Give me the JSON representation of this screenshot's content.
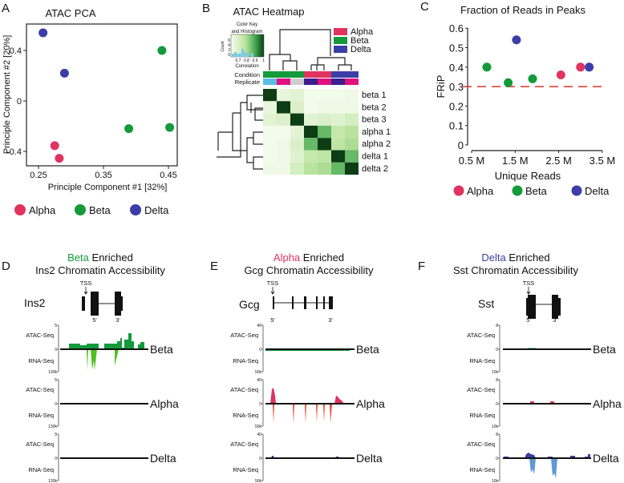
{
  "colors": {
    "alpha": "#e0335f",
    "beta": "#139a3a",
    "delta": "#3b3ea6",
    "threshold": "#d9362b",
    "rna_delta": "#5c9ad6",
    "rna_alpha": "#e8432a",
    "rna_beta": "#4fc11f"
  },
  "panels": {
    "A": "A",
    "B": "B",
    "C": "C",
    "D": "D",
    "E": "E",
    "F": "F"
  },
  "legend": [
    {
      "name": "Alpha",
      "color": "#e0335f"
    },
    {
      "name": "Beta",
      "color": "#139a3a"
    },
    {
      "name": "Delta",
      "color": "#3b3ea6"
    }
  ],
  "chart_data": [
    {
      "id": "pca",
      "type": "scatter",
      "title": "ATAC PCA",
      "xlabel": "Principle Component #1 [32%]",
      "ylabel": "Principle Component #2 [20%]",
      "xlim": [
        0.24,
        0.46
      ],
      "ylim": [
        -0.52,
        0.6
      ],
      "xticks": [
        "0.25",
        "0.35",
        "0.45"
      ],
      "xtick_values": [
        0.25,
        0.35,
        0.45
      ],
      "yticks": [
        "0.4",
        "0",
        "-0.4"
      ],
      "ytick_values": [
        0.4,
        0,
        -0.4
      ],
      "series": [
        {
          "name": "Alpha",
          "points": [
            [
              0.275,
              -0.355
            ],
            [
              0.282,
              -0.455
            ]
          ]
        },
        {
          "name": "Beta",
          "points": [
            [
              0.44,
              0.4
            ],
            [
              0.389,
              -0.22
            ],
            [
              0.452,
              -0.21
            ]
          ]
        },
        {
          "name": "Delta",
          "points": [
            [
              0.257,
              0.54
            ],
            [
              0.29,
              0.22
            ]
          ]
        }
      ]
    },
    {
      "id": "heatmap",
      "type": "heatmap",
      "title": "ATAC Heatmap",
      "color_key": {
        "title_line1": "Color Key",
        "title_line2": "and Histogram",
        "ylabel": "Count",
        "yticks": [
          "0",
          "2",
          "4",
          "6"
        ],
        "xticks": [
          "0.7",
          "0.8",
          "0.9",
          "1"
        ],
        "xlabel": "Correlation",
        "range": [
          0.6,
          1
        ]
      },
      "annotation_labels": [
        "Condition",
        "Replicate"
      ],
      "rows": [
        "beta 1",
        "beta 2",
        "beta 3",
        "alpha 1",
        "alpha 2",
        "delta 1",
        "delta 2"
      ],
      "condition": [
        "Beta",
        "Beta",
        "Beta",
        "Alpha",
        "Alpha",
        "Delta",
        "Delta"
      ],
      "replicate_colors": [
        "#5bbde6",
        "#e0107f",
        "#cfcfcf",
        "#3a1f8f",
        "#e0107f",
        "#3a1f8f",
        "#e0107f"
      ],
      "values": [
        [
          1.0,
          0.64,
          0.66,
          0.61,
          0.61,
          0.61,
          0.62
        ],
        [
          0.64,
          1.0,
          0.68,
          0.61,
          0.62,
          0.62,
          0.62
        ],
        [
          0.66,
          0.68,
          1.0,
          0.66,
          0.68,
          0.67,
          0.7
        ],
        [
          0.61,
          0.61,
          0.66,
          1.0,
          0.86,
          0.74,
          0.77
        ],
        [
          0.61,
          0.62,
          0.68,
          0.86,
          1.0,
          0.76,
          0.79
        ],
        [
          0.61,
          0.62,
          0.67,
          0.74,
          0.76,
          1.0,
          0.86
        ],
        [
          0.62,
          0.62,
          0.7,
          0.77,
          0.79,
          0.86,
          1.0
        ]
      ]
    },
    {
      "id": "frip",
      "type": "scatter",
      "title": "Fraction of Reads in Peaks",
      "xlabel": "Unique Reads",
      "ylabel": "FRiP",
      "xlim": [
        0.5,
        3.5
      ],
      "ylim": [
        0,
        0.6
      ],
      "xticks": [
        "0.5 M",
        "1.5 M",
        "2.5 M",
        "3.5 M"
      ],
      "xtick_values": [
        0.5,
        1.5,
        2.5,
        3.5
      ],
      "yticks": [
        "0",
        "0.1",
        "0.2",
        "0.3",
        "0.4",
        "0.5",
        "0.6"
      ],
      "ytick_values": [
        0,
        0.1,
        0.2,
        0.3,
        0.4,
        0.5,
        0.6
      ],
      "threshold": 0.3,
      "series": [
        {
          "name": "Alpha",
          "points": [
            [
              2.55,
              0.36
            ],
            [
              3.0,
              0.4
            ]
          ]
        },
        {
          "name": "Beta",
          "points": [
            [
              0.85,
              0.4
            ],
            [
              1.34,
              0.32
            ],
            [
              1.9,
              0.34
            ]
          ]
        },
        {
          "name": "Delta",
          "points": [
            [
              1.53,
              0.54
            ],
            [
              3.2,
              0.4
            ]
          ]
        }
      ]
    }
  ],
  "tracks": [
    {
      "title_cell": "Beta",
      "title_rest": " Enriched",
      "subtitle": "Ins2 Chromatin Accessibility",
      "gene": "Ins2",
      "cell_color": "#139a3a",
      "atac_max": "5",
      "rna_max": "130k",
      "zero": "0",
      "tss": "TSS",
      "five": "5'",
      "three": "3'",
      "atac_label": "ATAC-Seq",
      "rna_label": "RNA-Seq",
      "rows": [
        "Beta",
        "Alpha",
        "Delta"
      ]
    },
    {
      "title_cell": "Alpha",
      "title_rest": " Enriched",
      "subtitle": "Gcg Chromatin Accessibility",
      "gene": "Gcg",
      "cell_color": "#e0335f",
      "atac_max": "40",
      "rna_max": "50k",
      "zero": "0",
      "tss": "TSS",
      "five": "5'",
      "three": "3'",
      "atac_label": "ATAC-Seq",
      "rna_label": "RNA-Seq",
      "rows": [
        "Beta",
        "Alpha",
        "Delta"
      ]
    },
    {
      "title_cell": "Delta",
      "title_rest": " Enriched",
      "subtitle": "Sst Chromatin Accessibility",
      "gene": "Sst",
      "cell_color": "#3b3ea6",
      "atac_max": "8",
      "rna_max": "10k",
      "zero": "0",
      "tss": "TSS",
      "five": "5'",
      "three": "3'",
      "atac_label": "ATAC-Seq",
      "rna_label": "RNA-Seq",
      "rows": [
        "Beta",
        "Alpha",
        "Delta"
      ]
    }
  ]
}
